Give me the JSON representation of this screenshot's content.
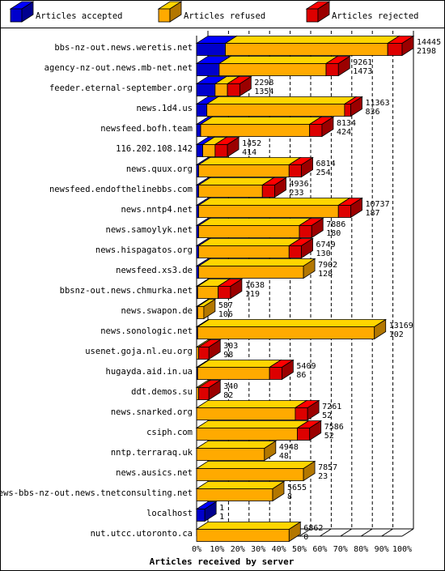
{
  "chart_data": {
    "type": "bar",
    "subtype": "stacked-horizontal-3d",
    "xlabel": "Articles received by server",
    "x_ticks": [
      "0%",
      "10%",
      "20%",
      "30%",
      "40%",
      "50%",
      "60%",
      "70%",
      "80%",
      "90%",
      "100%"
    ],
    "xlim": [
      0,
      100
    ],
    "grid": true,
    "legend_position": "top",
    "legend": [
      {
        "key": "accepted",
        "label": "Articles accepted",
        "color": "#0000cc"
      },
      {
        "key": "refused",
        "label": "Articles refused",
        "color": "#ffaa00"
      },
      {
        "key": "rejected",
        "label": "Articles rejected",
        "color": "#dd0000"
      }
    ],
    "rows": [
      {
        "server": "bbs-nz-out.news.weretis.net",
        "accepted_pct": 14,
        "refused_pct": 79,
        "rejected_pct": 7,
        "label_top": "14445",
        "label_bottom": "2198"
      },
      {
        "server": "agency-nz-out.news.mb-net.net",
        "accepted_pct": 11,
        "refused_pct": 52,
        "rejected_pct": 6,
        "label_top": "9261",
        "label_bottom": "1473"
      },
      {
        "server": "feeder.eternal-september.org",
        "accepted_pct": 9,
        "refused_pct": 6,
        "rejected_pct": 6,
        "label_top": "2298",
        "label_bottom": "1354"
      },
      {
        "server": "news.1d4.us",
        "accepted_pct": 5,
        "refused_pct": 67,
        "rejected_pct": 3,
        "label_top": "11363",
        "label_bottom": "836"
      },
      {
        "server": "newsfeed.bofh.team",
        "accepted_pct": 2,
        "refused_pct": 53,
        "rejected_pct": 6,
        "label_top": "8134",
        "label_bottom": "424"
      },
      {
        "server": "116.202.108.142",
        "accepted_pct": 3,
        "refused_pct": 6,
        "rejected_pct": 6,
        "label_top": "1452",
        "label_bottom": "414"
      },
      {
        "server": "news.quux.org",
        "accepted_pct": 1,
        "refused_pct": 44,
        "rejected_pct": 6,
        "label_top": "6814",
        "label_bottom": "254"
      },
      {
        "server": "newsfeed.endofthelinebbs.com",
        "accepted_pct": 1,
        "refused_pct": 31,
        "rejected_pct": 6,
        "label_top": "4936",
        "label_bottom": "233"
      },
      {
        "server": "news.nntp4.net",
        "accepted_pct": 1,
        "refused_pct": 68,
        "rejected_pct": 6,
        "label_top": "10737",
        "label_bottom": "187"
      },
      {
        "server": "news.samoylyk.net",
        "accepted_pct": 1,
        "refused_pct": 49,
        "rejected_pct": 6,
        "label_top": "7886",
        "label_bottom": "180"
      },
      {
        "server": "news.hispagatos.org",
        "accepted_pct": 1,
        "refused_pct": 44,
        "rejected_pct": 6,
        "label_top": "6749",
        "label_bottom": "130"
      },
      {
        "server": "newsfeed.xs3.de",
        "accepted_pct": 1,
        "refused_pct": 51,
        "rejected_pct": 0,
        "label_top": "7902",
        "label_bottom": "128"
      },
      {
        "server": "bbsnz-out.news.chmurka.net",
        "accepted_pct": 0.5,
        "refused_pct": 10,
        "rejected_pct": 6,
        "label_top": "1638",
        "label_bottom": "119"
      },
      {
        "server": "news.swapon.de",
        "accepted_pct": 0.5,
        "refused_pct": 3,
        "rejected_pct": 0,
        "label_top": "587",
        "label_bottom": "106"
      },
      {
        "server": "news.sonologic.net",
        "accepted_pct": 0.5,
        "refused_pct": 86,
        "rejected_pct": 0,
        "label_top": "13169",
        "label_bottom": "102"
      },
      {
        "server": "usenet.goja.nl.eu.org",
        "accepted_pct": 0,
        "refused_pct": 1,
        "rejected_pct": 5,
        "label_top": "303",
        "label_bottom": "98"
      },
      {
        "server": "hugayda.aid.in.ua",
        "accepted_pct": 0.5,
        "refused_pct": 35,
        "rejected_pct": 6,
        "label_top": "5409",
        "label_bottom": "86"
      },
      {
        "server": "ddt.demos.su",
        "accepted_pct": 0,
        "refused_pct": 1,
        "rejected_pct": 5,
        "label_top": "340",
        "label_bottom": "82"
      },
      {
        "server": "news.snarked.org",
        "accepted_pct": 0,
        "refused_pct": 48,
        "rejected_pct": 6,
        "label_top": "7261",
        "label_bottom": "52"
      },
      {
        "server": "csiph.com",
        "accepted_pct": 0,
        "refused_pct": 49,
        "rejected_pct": 6,
        "label_top": "7586",
        "label_bottom": "52"
      },
      {
        "server": "nntp.terraraq.uk",
        "accepted_pct": 0,
        "refused_pct": 33,
        "rejected_pct": 0,
        "label_top": "4948",
        "label_bottom": "48"
      },
      {
        "server": "news.ausics.net",
        "accepted_pct": 0,
        "refused_pct": 52,
        "rejected_pct": 0,
        "label_top": "7857",
        "label_bottom": "23"
      },
      {
        "server": "news-bbs-nz-out.news.tnetconsulting.net",
        "accepted_pct": 0,
        "refused_pct": 37,
        "rejected_pct": 0,
        "label_top": "5655",
        "label_bottom": "8"
      },
      {
        "server": "localhost",
        "accepted_pct": 4,
        "refused_pct": 0,
        "rejected_pct": 0,
        "label_top": "1",
        "label_bottom": "1"
      },
      {
        "server": "nut.utcc.utoronto.ca",
        "accepted_pct": 0,
        "refused_pct": 45,
        "rejected_pct": 0,
        "label_top": "6862",
        "label_bottom": "0"
      }
    ]
  }
}
